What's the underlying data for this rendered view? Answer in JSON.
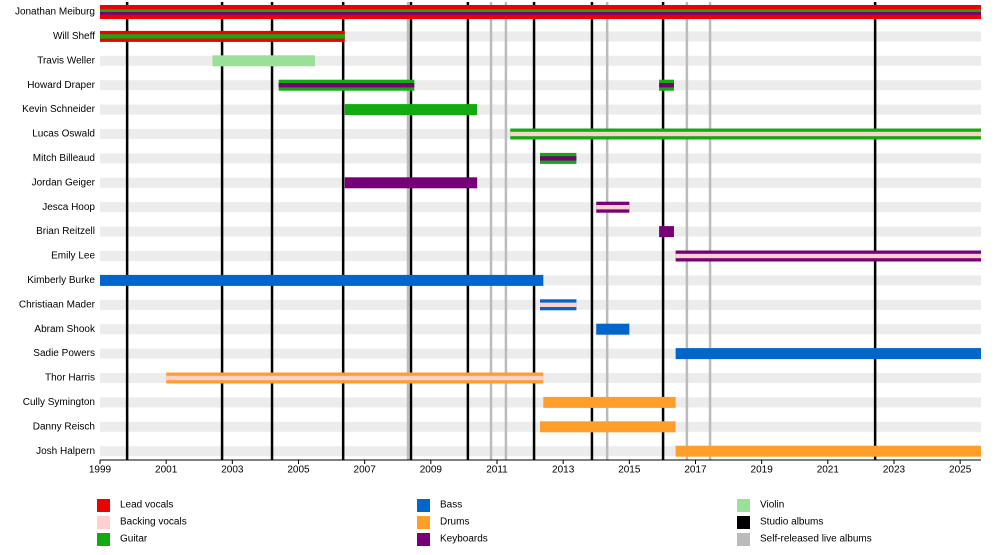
{
  "chart_data": {
    "type": "timeline",
    "xlim": [
      1999,
      2025.63
    ],
    "xticks": [
      1999,
      2001,
      2003,
      2005,
      2007,
      2009,
      2011,
      2013,
      2015,
      2017,
      2019,
      2021,
      2023,
      2025
    ],
    "roles": [
      {
        "name": "Lead vocals",
        "color": "#ee0000"
      },
      {
        "name": "Backing vocals",
        "color": "#ffd0d0"
      },
      {
        "name": "Guitar",
        "color": "#11aa11"
      },
      {
        "name": "Bass",
        "color": "#0066cc"
      },
      {
        "name": "Drums",
        "color": "#ff9f2a"
      },
      {
        "name": "Keyboards",
        "color": "#770077"
      },
      {
        "name": "Violin",
        "color": "#99e099"
      }
    ],
    "lines": [
      {
        "name": "Studio albums",
        "color": "#000000",
        "values": [
          1999.82,
          2002.69,
          2004.2,
          2006.35,
          2008.4,
          2010.12,
          2012.12,
          2013.87,
          2016.02,
          2022.43
        ]
      },
      {
        "name": "Self-released live albums",
        "color": "#bbbbbb",
        "values": [
          2008.31,
          2010.82,
          2011.27,
          2014.33,
          2016.74,
          2017.44
        ]
      }
    ],
    "members": [
      {
        "name": "Jonathan Meiburg",
        "bars": [
          {
            "start": 1999,
            "end": 2025.63,
            "roles": [
              "Lead vocals",
              "Guitar",
              "Keyboards"
            ]
          }
        ]
      },
      {
        "name": "Will Sheff",
        "bars": [
          {
            "start": 1999,
            "end": 2006.4,
            "roles": [
              "Lead vocals",
              "Guitar"
            ]
          }
        ]
      },
      {
        "name": "Travis Weller",
        "bars": [
          {
            "start": 2002.4,
            "end": 2005.5,
            "roles": [
              "Violin"
            ]
          }
        ]
      },
      {
        "name": "Howard Draper",
        "bars": [
          {
            "start": 2004.4,
            "end": 2008.5,
            "roles": [
              "Guitar",
              "Keyboards"
            ]
          },
          {
            "start": 2015.9,
            "end": 2016.35,
            "roles": [
              "Guitar",
              "Keyboards"
            ]
          }
        ]
      },
      {
        "name": "Kevin Schneider",
        "bars": [
          {
            "start": 2006.4,
            "end": 2010.4,
            "roles": [
              "Guitar"
            ]
          }
        ]
      },
      {
        "name": "Lucas Oswald",
        "bars": [
          {
            "start": 2011.4,
            "end": 2025.63,
            "roles": [
              "Guitar",
              "Backing vocals"
            ]
          }
        ]
      },
      {
        "name": "Mitch Billeaud",
        "bars": [
          {
            "start": 2012.3,
            "end": 2013.4,
            "roles": [
              "Guitar",
              "Keyboards"
            ]
          }
        ]
      },
      {
        "name": "Jordan Geiger",
        "bars": [
          {
            "start": 2006.4,
            "end": 2010.4,
            "roles": [
              "Keyboards"
            ]
          }
        ]
      },
      {
        "name": "Jesca Hoop",
        "bars": [
          {
            "start": 2014,
            "end": 2015,
            "roles": [
              "Keyboards",
              "Backing vocals"
            ]
          }
        ]
      },
      {
        "name": "Brian Reitzell",
        "bars": [
          {
            "start": 2015.9,
            "end": 2016.35,
            "roles": [
              "Keyboards"
            ]
          }
        ]
      },
      {
        "name": "Emily Lee",
        "bars": [
          {
            "start": 2016.4,
            "end": 2025.63,
            "roles": [
              "Keyboards",
              "Backing vocals"
            ]
          }
        ]
      },
      {
        "name": "Kimberly Burke",
        "bars": [
          {
            "start": 1999,
            "end": 2012.4,
            "roles": [
              "Bass"
            ]
          }
        ]
      },
      {
        "name": "Christiaan Mader",
        "bars": [
          {
            "start": 2012.3,
            "end": 2013.4,
            "roles": [
              "Bass",
              "Backing vocals"
            ]
          }
        ]
      },
      {
        "name": "Abram Shook",
        "bars": [
          {
            "start": 2014,
            "end": 2015,
            "roles": [
              "Bass"
            ]
          }
        ]
      },
      {
        "name": "Sadie Powers",
        "bars": [
          {
            "start": 2016.4,
            "end": 2025.63,
            "roles": [
              "Bass"
            ]
          }
        ]
      },
      {
        "name": "Thor Harris",
        "bars": [
          {
            "start": 2001,
            "end": 2012.4,
            "roles": [
              "Drums",
              "Backing vocals"
            ]
          }
        ]
      },
      {
        "name": "Cully Symington",
        "bars": [
          {
            "start": 2012.4,
            "end": 2016.4,
            "roles": [
              "Drums"
            ]
          }
        ]
      },
      {
        "name": "Danny Reisch",
        "bars": [
          {
            "start": 2012.3,
            "end": 2016.4,
            "roles": [
              "Drums"
            ]
          }
        ]
      },
      {
        "name": "Josh Halpern",
        "bars": [
          {
            "start": 2016.4,
            "end": 2025.63,
            "roles": [
              "Drums"
            ]
          }
        ]
      }
    ]
  }
}
